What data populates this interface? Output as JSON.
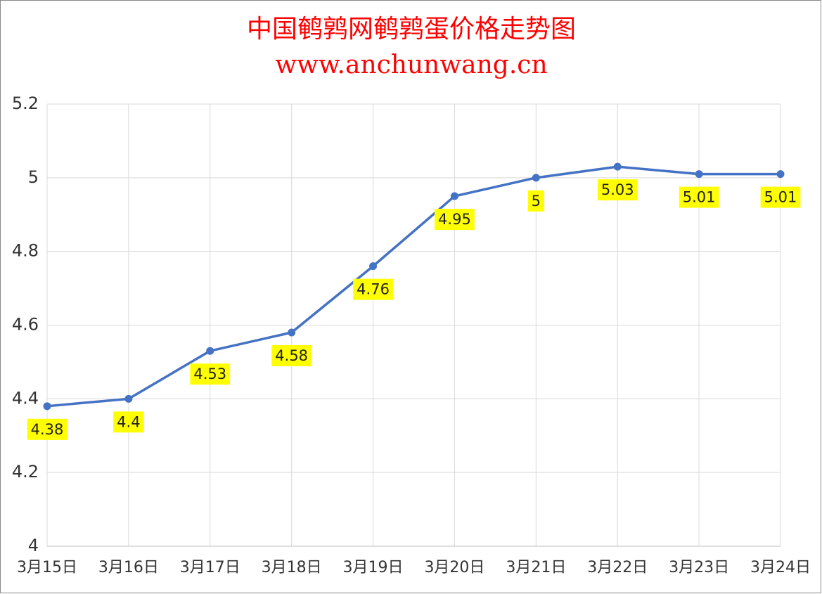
{
  "chart_data": {
    "type": "line",
    "title": "中国鹌鹑网鹌鹑蛋价格走势图",
    "subtitle": "www.anchunwang.cn",
    "categories": [
      "3月15日",
      "3月16日",
      "3月17日",
      "3月18日",
      "3月19日",
      "3月20日",
      "3月21日",
      "3月22日",
      "3月23日",
      "3月24日"
    ],
    "series": [
      {
        "name": "鹌鹑蛋价格",
        "color": "#4472c4",
        "values": [
          4.38,
          4.4,
          4.53,
          4.58,
          4.76,
          4.95,
          5,
          5.03,
          5.01,
          5.01
        ]
      }
    ],
    "ylim": [
      4,
      5.2
    ],
    "yticks": [
      4,
      4.2,
      4.4,
      4.6,
      4.8,
      5,
      5.2
    ],
    "grid": true,
    "label_color": "#ffff00"
  }
}
